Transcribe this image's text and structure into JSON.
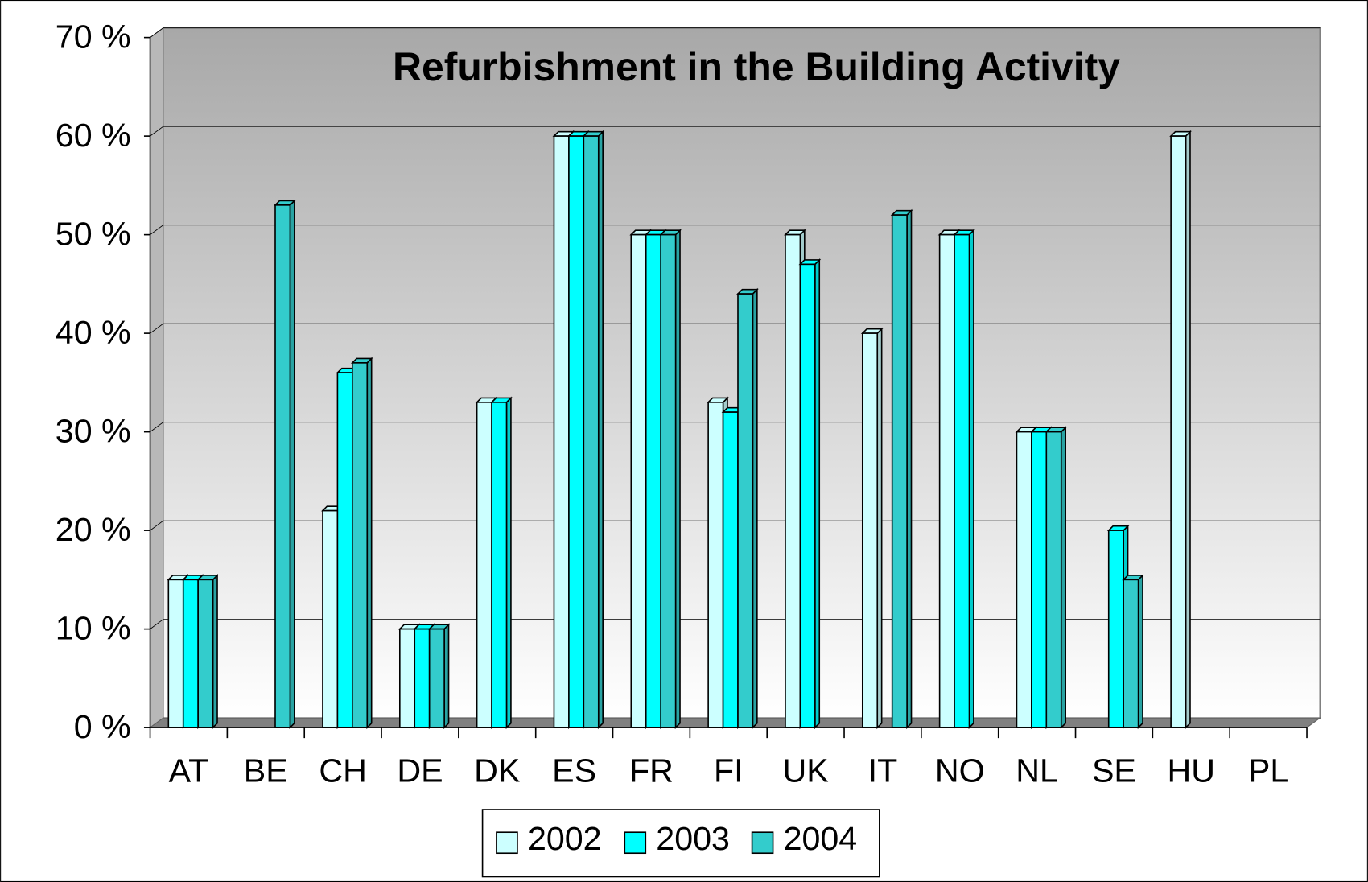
{
  "chart_data": {
    "type": "bar3d",
    "title": "Refurbishment in the Building Activity",
    "categories": [
      "AT",
      "BE",
      "CH",
      "DE",
      "DK",
      "ES",
      "FR",
      "FI",
      "UK",
      "IT",
      "NO",
      "NL",
      "SE",
      "HU",
      "PL"
    ],
    "series": [
      {
        "name": "2002",
        "color": "#ccffff",
        "values": [
          15,
          null,
          22,
          10,
          33,
          60,
          50,
          33,
          50,
          40,
          50,
          30,
          null,
          60,
          null
        ]
      },
      {
        "name": "2003",
        "color": "#00ffff",
        "values": [
          15,
          null,
          36,
          10,
          33,
          60,
          50,
          32,
          47,
          null,
          50,
          30,
          20,
          null,
          null
        ]
      },
      {
        "name": "2004",
        "color": "#33cccc",
        "values": [
          15,
          53,
          37,
          10,
          null,
          60,
          50,
          44,
          null,
          52,
          null,
          30,
          15,
          null,
          null
        ]
      }
    ],
    "ylim": [
      0,
      70
    ],
    "yticks": [
      {
        "value": 0,
        "label": "0 %"
      },
      {
        "value": 10,
        "label": "10 %"
      },
      {
        "value": 20,
        "label": "20 %"
      },
      {
        "value": 30,
        "label": "30 %"
      },
      {
        "value": 40,
        "label": "40 %"
      },
      {
        "value": 50,
        "label": "50 %"
      },
      {
        "value": 60,
        "label": "60 %"
      },
      {
        "value": 70,
        "label": "70 %"
      }
    ],
    "grid": true,
    "legend": "bottom"
  }
}
